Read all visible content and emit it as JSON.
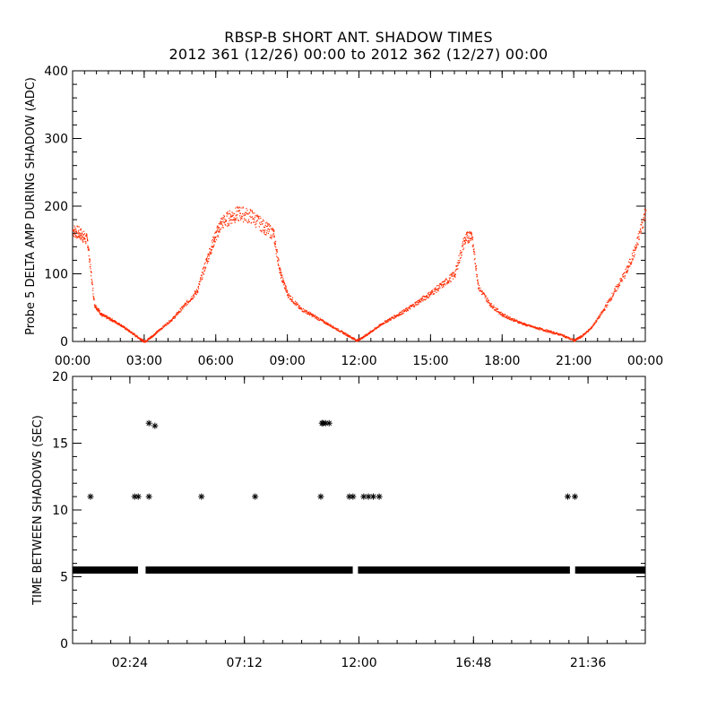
{
  "title": {
    "line1": "RBSP-B SHORT ANT. SHADOW TIMES",
    "line2": "2012 361 (12/26) 00:00 to 2012 362 (12/27) 00:00"
  },
  "colors": {
    "shadow_amp": "#ff2a00",
    "shadow_time": "#000000",
    "axes": "#000000"
  },
  "chart_data": [
    {
      "type": "scatter",
      "ylabel": "Probe 5 DELTA AMP DURING SHADOW (ADC)",
      "xlabel": "",
      "xlim": [
        0,
        24
      ],
      "ylim": [
        0,
        400
      ],
      "xticks": [
        0,
        3,
        6,
        9,
        12,
        15,
        18,
        21,
        24
      ],
      "xtick_labels": [
        "00:00",
        "03:00",
        "06:00",
        "09:00",
        "12:00",
        "15:00",
        "18:00",
        "21:00",
        "00:00"
      ],
      "yticks": [
        0,
        100,
        200,
        300,
        400
      ],
      "ytick_labels": [
        "0",
        "100",
        "200",
        "300",
        "400"
      ],
      "marker_color": "#ff2a00",
      "series": [
        {
          "x_hours": [
            0.0,
            0.3,
            0.6,
            0.9,
            1.2,
            1.6,
            2.0,
            2.4,
            2.8,
            3.0,
            3.3,
            3.7,
            4.2,
            4.7,
            5.2,
            5.6,
            5.9,
            6.2,
            6.6,
            7.0,
            7.5,
            8.0,
            8.4,
            8.7,
            9.0,
            9.5,
            10.0,
            10.5,
            11.0,
            11.5,
            11.9,
            12.2,
            12.6,
            13.0,
            13.5,
            14.0,
            14.5,
            15.0,
            15.5,
            16.0,
            16.4,
            16.7,
            17.0,
            17.5,
            18.0,
            18.5,
            19.0,
            19.5,
            20.0,
            20.5,
            21.0,
            21.3,
            21.7,
            22.2,
            22.7,
            23.2,
            23.6,
            24.0
          ],
          "y_adc": [
            165,
            160,
            150,
            55,
            40,
            33,
            25,
            15,
            5,
            0,
            8,
            20,
            35,
            55,
            75,
            120,
            150,
            175,
            185,
            190,
            185,
            170,
            160,
            100,
            70,
            50,
            40,
            30,
            20,
            10,
            2,
            8,
            18,
            28,
            38,
            48,
            60,
            72,
            85,
            100,
            150,
            160,
            80,
            55,
            40,
            32,
            25,
            20,
            15,
            10,
            2,
            8,
            20,
            45,
            75,
            105,
            140,
            195
          ]
        }
      ]
    },
    {
      "type": "scatter",
      "ylabel": "TIME BETWEEN SHADOWS (SEC)",
      "xlabel": "",
      "xlim": [
        0,
        24
      ],
      "ylim": [
        0,
        20
      ],
      "xticks": [
        2.4,
        7.2,
        12.0,
        16.8,
        21.6
      ],
      "xtick_labels": [
        "02:24",
        "07:12",
        "12:00",
        "16:48",
        "21:36"
      ],
      "yticks": [
        0,
        5,
        10,
        15,
        20
      ],
      "ytick_labels": [
        "0",
        "5",
        "10",
        "15",
        "20"
      ],
      "marker": "asterisk",
      "marker_color": "#000000",
      "baseline": {
        "y_sec": 5.5,
        "x_start": 0.0,
        "x_end": 24.0,
        "gaps": [
          [
            2.75,
            3.05
          ],
          [
            11.75,
            11.95
          ],
          [
            20.85,
            21.05
          ]
        ]
      },
      "outliers": {
        "x_hours": [
          0.75,
          2.6,
          2.75,
          3.2,
          5.4,
          7.65,
          10.4,
          10.45,
          10.6,
          11.6,
          11.75,
          12.2,
          12.4,
          12.6,
          12.85,
          20.75,
          21.05,
          3.2,
          3.45,
          10.5,
          10.75
        ],
        "y_sec": [
          11,
          11,
          11,
          11,
          11,
          11,
          11,
          16.5,
          16.5,
          11,
          11,
          11,
          11,
          11,
          11,
          11,
          11,
          16.5,
          16.3,
          16.5,
          16.5
        ]
      }
    }
  ]
}
